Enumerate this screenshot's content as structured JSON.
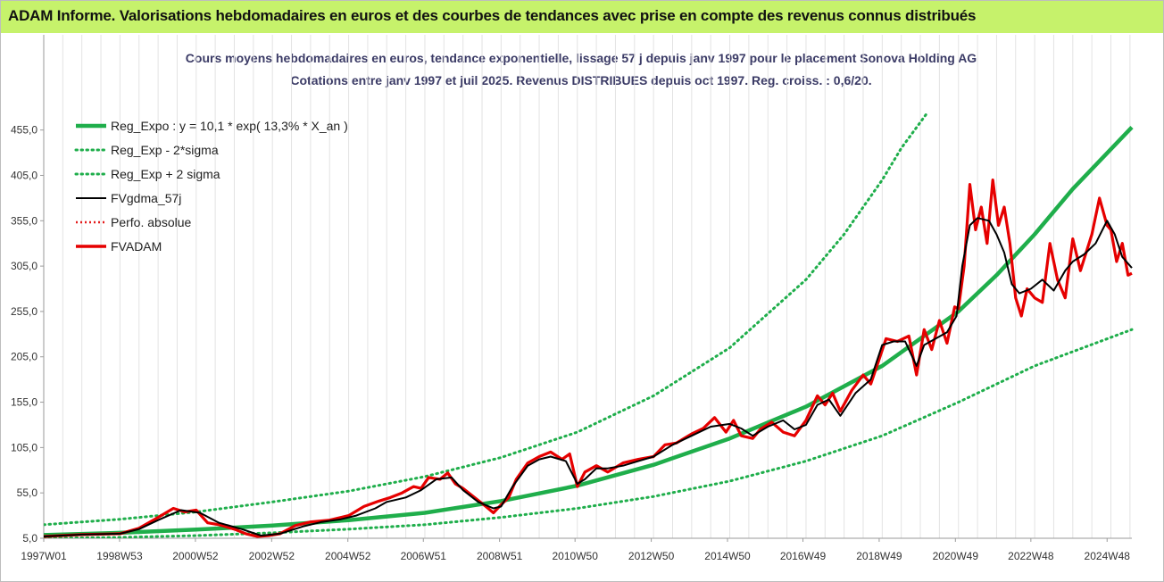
{
  "banner": {
    "title": "ADAM Informe. Valorisations hebdomadaires en euros et des courbes de tendances avec prise en compte des revenus connus distribués"
  },
  "chart_data": {
    "type": "line",
    "title_lines": [
      "Cours moyens hebdomadaires en euros, tendance exponentielle, lissage 57 j depuis janv 1997  pour le placement Sonova Holding AG",
      "Cotations entre janv 1997 et juil 2025. Revenus DISTRIBUES depuis oct 1997. Reg. croiss. : 0,6/20."
    ],
    "xlabel": "",
    "ylabel": "",
    "x_range": [
      1997.0,
      2025.55
    ],
    "ylim": [
      5,
      495
    ],
    "y_ticks": [
      5,
      55,
      105,
      155,
      205,
      255,
      305,
      355,
      405,
      455
    ],
    "y_tick_labels": [
      "5,0",
      "55,0",
      "105,0",
      "155,0",
      "205,0",
      "255,0",
      "305,0",
      "355,0",
      "405,0",
      "455,0"
    ],
    "x_ticks": [
      {
        "label": "1997W01",
        "x": 1997.0
      },
      {
        "label": "1998W53",
        "x": 1998.99
      },
      {
        "label": "2000W52",
        "x": 2000.98
      },
      {
        "label": "2002W52",
        "x": 2002.98
      },
      {
        "label": "2004W52",
        "x": 2004.98
      },
      {
        "label": "2006W51",
        "x": 2006.96
      },
      {
        "label": "2008W51",
        "x": 2008.96
      },
      {
        "label": "2010W50",
        "x": 2010.94
      },
      {
        "label": "2012W50",
        "x": 2012.94
      },
      {
        "label": "2014W50",
        "x": 2014.94
      },
      {
        "label": "2016W49",
        "x": 2016.92
      },
      {
        "label": "2018W49",
        "x": 2018.92
      },
      {
        "label": "2020W49",
        "x": 2020.92
      },
      {
        "label": "2022W48",
        "x": 2022.9
      },
      {
        "label": "2024W48",
        "x": 2024.9
      }
    ],
    "grid": "vertical",
    "legend_position": "top-left",
    "series": [
      {
        "name": "Reg_Expo : y = 10,1 * exp( 13,3% *  X_an )",
        "color": "#1fae4b",
        "style": "solid",
        "x": [
          1997.0,
          1999.0,
          2001.0,
          2003.0,
          2005.0,
          2007.0,
          2009.0,
          2011.0,
          2013.0,
          2015.0,
          2017.0,
          2019.0,
          2021.0,
          2022.0,
          2023.0,
          2024.0,
          2025.55
        ],
        "values": [
          8.5,
          11.0,
          14.5,
          19.0,
          25.0,
          33.0,
          46.0,
          63.0,
          86.0,
          115.0,
          150.0,
          195.0,
          255.0,
          295.0,
          340.0,
          390.0,
          458.0
        ]
      },
      {
        "name": "Reg_Exp - 2*sigma",
        "color": "#1fae4b",
        "style": "dotted",
        "x": [
          1997.0,
          1999.0,
          2001.0,
          2003.0,
          2005.0,
          2007.0,
          2009.0,
          2011.0,
          2013.0,
          2015.0,
          2017.0,
          2019.0,
          2021.0,
          2023.0,
          2025.55
        ],
        "values": [
          5.0,
          6.0,
          8.0,
          11.0,
          15.0,
          20.0,
          28.0,
          38.0,
          51.0,
          68.0,
          90.0,
          118.0,
          155.0,
          195.0,
          235.0
        ]
      },
      {
        "name": "Reg_Exp + 2 sigma",
        "color": "#1fae4b",
        "style": "dotted",
        "x": [
          1997.0,
          1999.0,
          2001.0,
          2003.0,
          2005.0,
          2007.0,
          2009.0,
          2011.0,
          2013.0,
          2015.0,
          2017.0,
          2018.0,
          2019.0,
          2019.5,
          2020.2
        ],
        "values": [
          20.0,
          26.0,
          34.0,
          45.0,
          57.0,
          73.0,
          94.0,
          122.0,
          162.0,
          215.0,
          290.0,
          340.0,
          400.0,
          435.0,
          475.0
        ]
      },
      {
        "name": "FVgdma_57j",
        "color": "#000000",
        "style": "solid",
        "x": [
          1997.0,
          1998.0,
          1999.0,
          1999.5,
          2000.0,
          2000.6,
          2001.1,
          2001.6,
          2002.2,
          2002.7,
          2003.2,
          2003.8,
          2004.3,
          2004.8,
          2005.2,
          2005.7,
          2006.0,
          2006.5,
          2006.9,
          2007.3,
          2007.7,
          2008.0,
          2008.4,
          2008.8,
          2009.0,
          2009.3,
          2009.7,
          2010.0,
          2010.3,
          2010.7,
          2011.0,
          2011.2,
          2011.5,
          2011.8,
          2012.2,
          2012.6,
          2013.0,
          2013.5,
          2014.0,
          2014.5,
          2015.0,
          2015.3,
          2015.6,
          2016.0,
          2016.4,
          2016.7,
          2017.0,
          2017.3,
          2017.6,
          2017.9,
          2018.3,
          2018.7,
          2019.0,
          2019.3,
          2019.6,
          2019.9,
          2020.1,
          2020.4,
          2020.7,
          2020.95,
          2021.1,
          2021.3,
          2021.5,
          2021.8,
          2022.0,
          2022.2,
          2022.4,
          2022.6,
          2022.9,
          2023.2,
          2023.5,
          2023.8,
          2024.0,
          2024.3,
          2024.6,
          2024.9,
          2025.1,
          2025.3,
          2025.55
        ],
        "values": [
          7,
          9,
          10,
          15,
          25,
          36,
          33,
          22,
          15,
          8,
          10,
          18,
          23,
          26,
          30,
          38,
          45,
          50,
          58,
          70,
          72,
          58,
          45,
          38,
          40,
          62,
          85,
          92,
          95,
          90,
          65,
          70,
          82,
          82,
          85,
          90,
          95,
          108,
          118,
          128,
          131,
          126,
          118,
          128,
          135,
          125,
          130,
          152,
          158,
          140,
          165,
          180,
          218,
          222,
          222,
          195,
          218,
          225,
          232,
          250,
          305,
          350,
          358,
          355,
          340,
          320,
          285,
          275,
          280,
          290,
          278,
          300,
          310,
          318,
          330,
          355,
          340,
          315,
          303
        ]
      },
      {
        "name": "Perfo. absolue",
        "color": "#e41a1a",
        "style": "dotted",
        "x": [],
        "values": []
      },
      {
        "name": "FVADAM",
        "color": "#e60000",
        "style": "solid",
        "x": [
          1997.0,
          1998.0,
          1999.0,
          1999.5,
          2000.0,
          2000.4,
          2000.7,
          2001.0,
          2001.3,
          2001.6,
          2002.0,
          2002.3,
          2002.6,
          2002.9,
          2003.2,
          2003.6,
          2004.0,
          2004.5,
          2005.0,
          2005.4,
          2005.8,
          2006.1,
          2006.4,
          2006.7,
          2006.9,
          2007.1,
          2007.4,
          2007.6,
          2007.8,
          2008.0,
          2008.3,
          2008.6,
          2008.8,
          2009.0,
          2009.2,
          2009.4,
          2009.7,
          2010.0,
          2010.3,
          2010.6,
          2010.8,
          2011.0,
          2011.2,
          2011.5,
          2011.8,
          2012.2,
          2012.6,
          2013.0,
          2013.3,
          2013.6,
          2014.0,
          2014.3,
          2014.6,
          2014.9,
          2015.1,
          2015.3,
          2015.6,
          2015.8,
          2016.1,
          2016.4,
          2016.7,
          2017.0,
          2017.3,
          2017.5,
          2017.7,
          2017.9,
          2018.2,
          2018.5,
          2018.7,
          2018.9,
          2019.1,
          2019.4,
          2019.7,
          2019.9,
          2020.1,
          2020.3,
          2020.5,
          2020.7,
          2020.9,
          2021.0,
          2021.15,
          2021.3,
          2021.45,
          2021.6,
          2021.75,
          2021.9,
          2022.05,
          2022.2,
          2022.35,
          2022.5,
          2022.65,
          2022.8,
          2023.0,
          2023.2,
          2023.4,
          2023.6,
          2023.8,
          2024.0,
          2024.2,
          2024.35,
          2024.5,
          2024.7,
          2024.9,
          2025.0,
          2025.15,
          2025.3,
          2025.45,
          2025.55
        ],
        "values": [
          7,
          9,
          10,
          16,
          28,
          38,
          34,
          36,
          22,
          20,
          15,
          10,
          7,
          8,
          10,
          19,
          23,
          25,
          30,
          40,
          46,
          50,
          55,
          62,
          60,
          72,
          70,
          77,
          65,
          60,
          50,
          40,
          33,
          42,
          50,
          70,
          88,
          95,
          100,
          92,
          98,
          62,
          78,
          85,
          78,
          88,
          92,
          95,
          108,
          110,
          120,
          126,
          138,
          122,
          135,
          118,
          115,
          125,
          133,
          122,
          118,
          135,
          162,
          152,
          165,
          145,
          168,
          185,
          175,
          200,
          225,
          222,
          228,
          185,
          235,
          213,
          245,
          220,
          260,
          258,
          305,
          395,
          345,
          370,
          330,
          400,
          350,
          370,
          330,
          270,
          250,
          280,
          270,
          265,
          330,
          290,
          270,
          335,
          300,
          320,
          340,
          380,
          350,
          345,
          310,
          330,
          295,
          297
        ]
      }
    ]
  }
}
